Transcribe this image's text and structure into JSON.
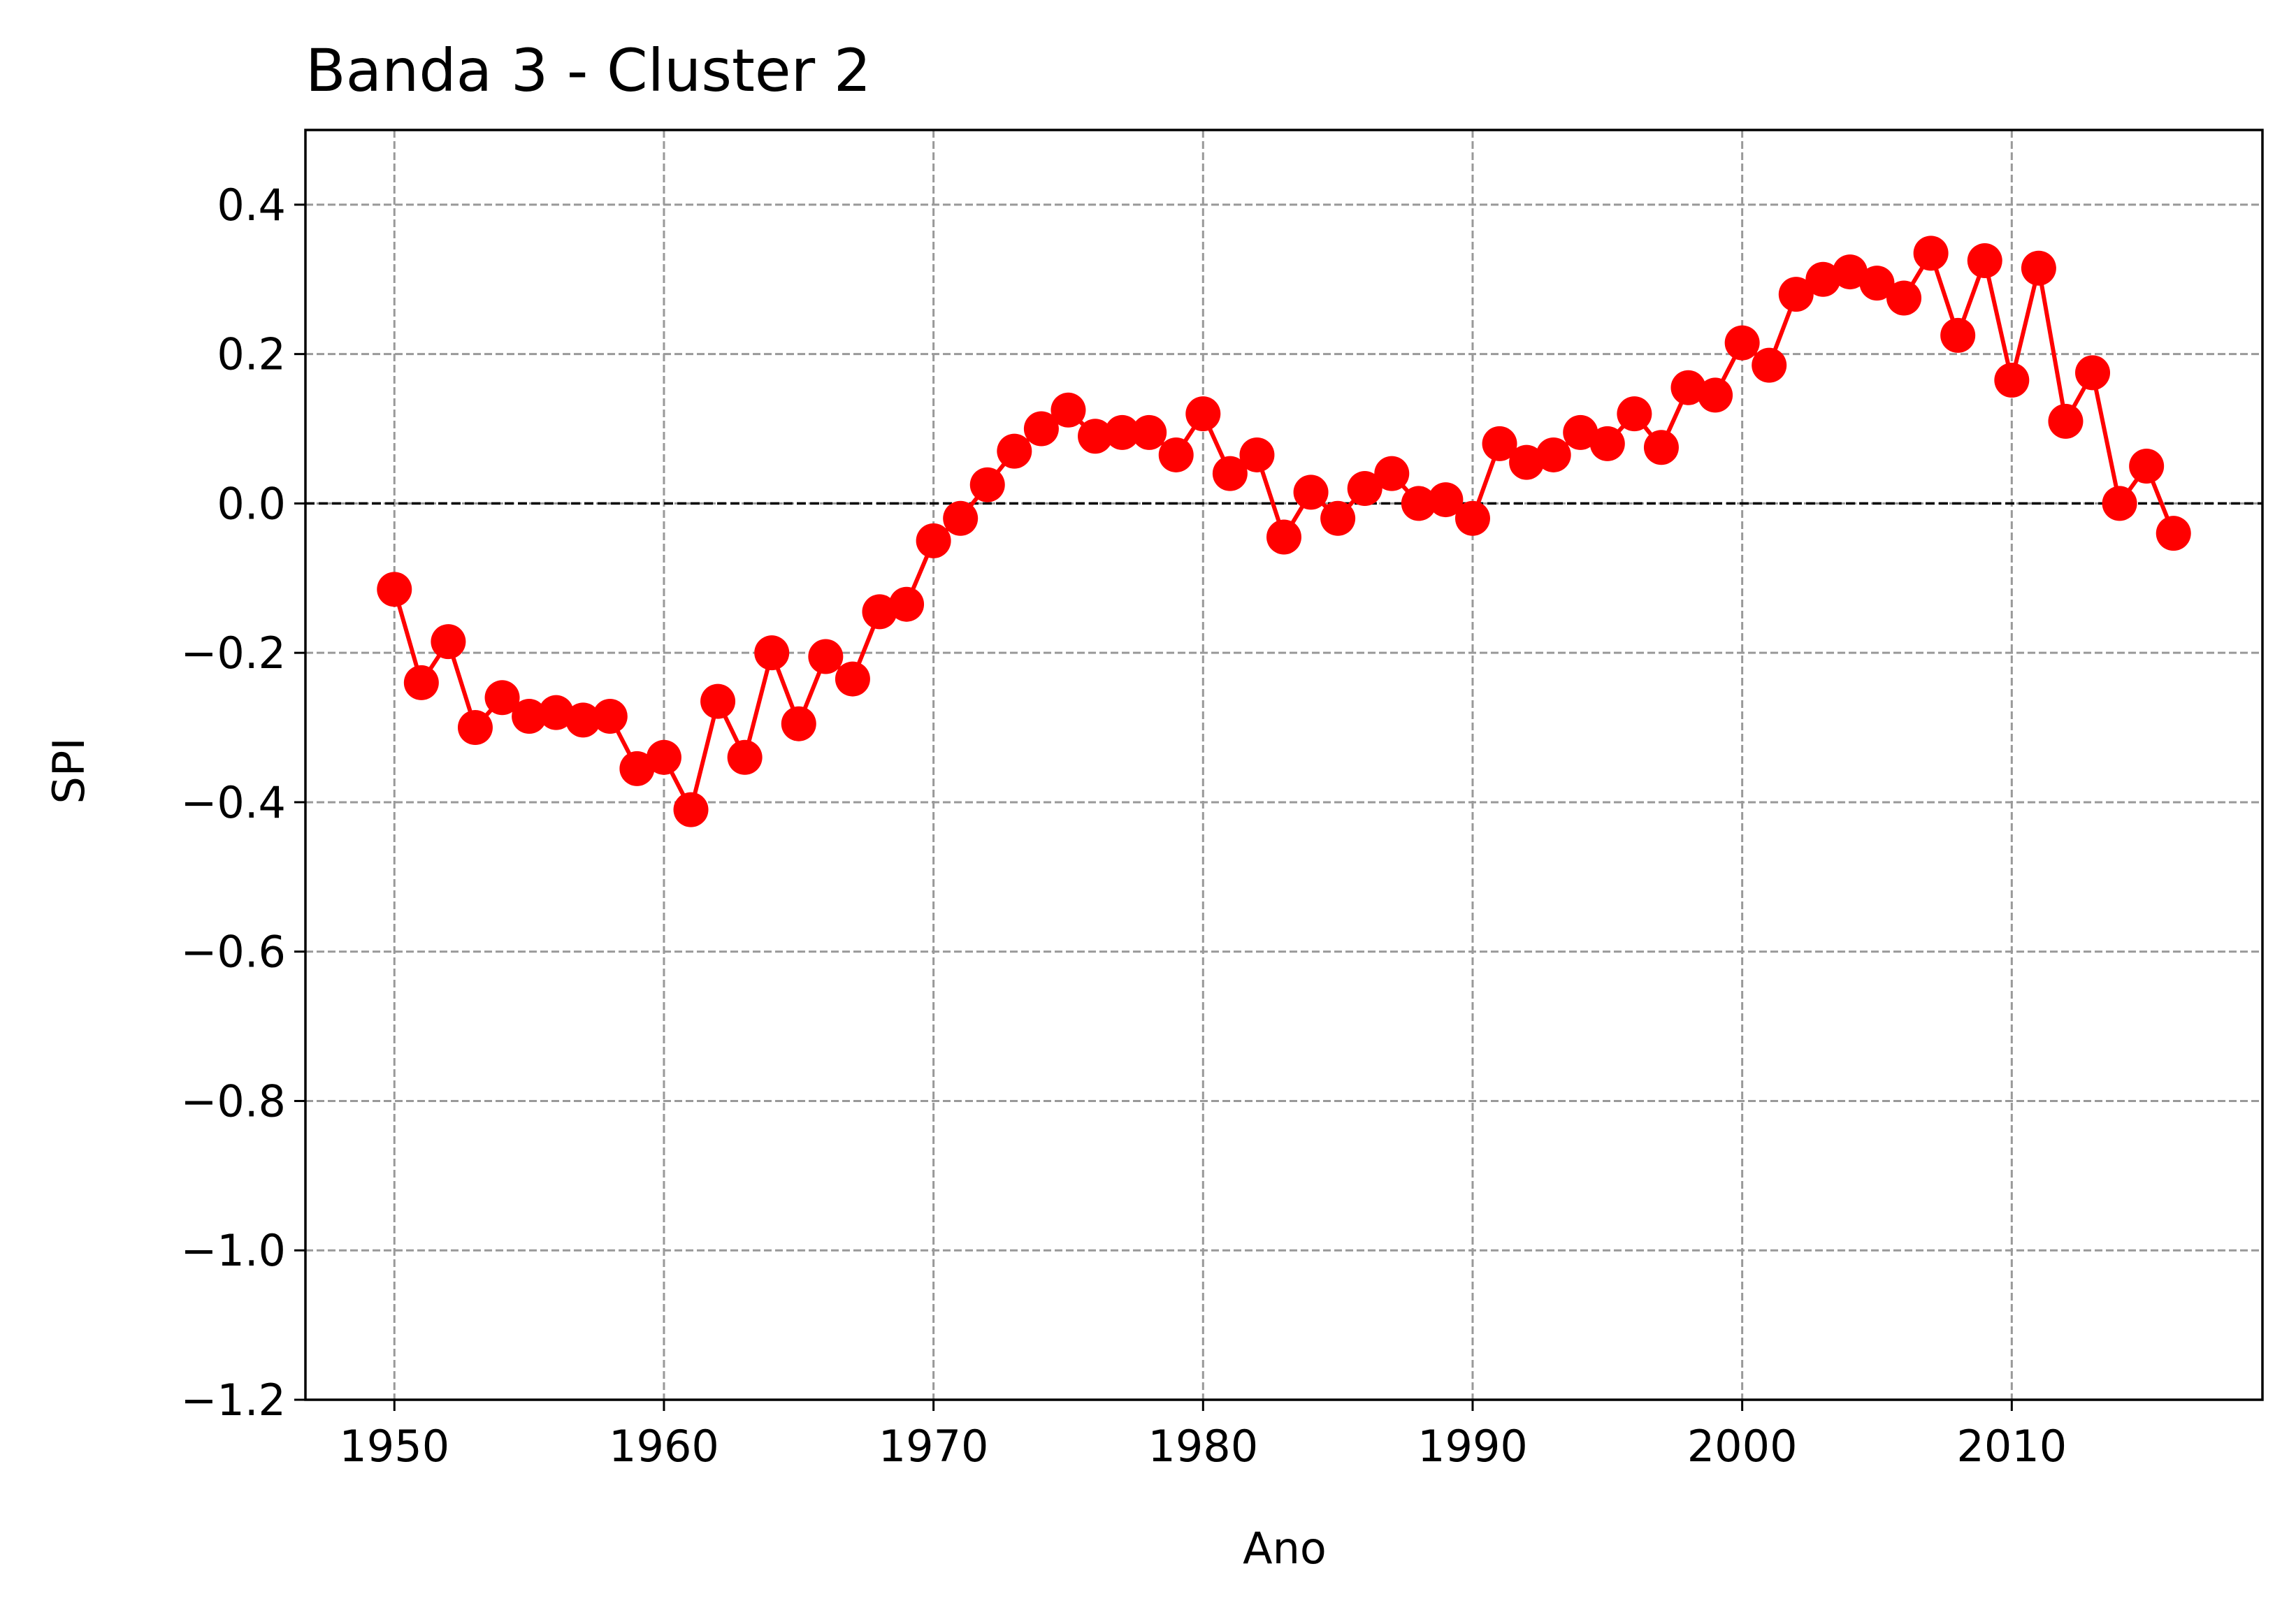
{
  "chart_data": {
    "type": "line",
    "title": "Banda 3 - Cluster 2",
    "xlabel": "Ano",
    "ylabel": "SPI",
    "xlim": [
      1946.7,
      2019.3
    ],
    "ylim": [
      -1.2,
      0.5
    ],
    "xticks": [
      1950,
      1960,
      1970,
      1980,
      1990,
      2000,
      2010
    ],
    "xtick_labels": [
      "1950",
      "1960",
      "1970",
      "1980",
      "1990",
      "2000",
      "2010"
    ],
    "yticks": [
      -1.2,
      -1.0,
      -0.8,
      -0.6,
      -0.4,
      -0.2,
      0.0,
      0.2,
      0.4
    ],
    "ytick_labels": [
      "−1.2",
      "−1.0",
      "−0.8",
      "−0.6",
      "−0.4",
      "−0.2",
      "0.0",
      "0.2",
      "0.4"
    ],
    "grid": true,
    "reference_line": 0.0,
    "colors": {
      "series": "#ff0000",
      "grid": "#999999",
      "reference": "#000000"
    },
    "x": [
      1950,
      1951,
      1952,
      1953,
      1954,
      1955,
      1956,
      1957,
      1958,
      1959,
      1960,
      1961,
      1962,
      1963,
      1964,
      1965,
      1966,
      1967,
      1968,
      1969,
      1970,
      1971,
      1972,
      1973,
      1974,
      1975,
      1976,
      1977,
      1978,
      1979,
      1980,
      1981,
      1982,
      1983,
      1984,
      1985,
      1986,
      1987,
      1988,
      1989,
      1990,
      1991,
      1992,
      1993,
      1994,
      1995,
      1996,
      1997,
      1998,
      1999,
      2000,
      2001,
      2002,
      2003,
      2004,
      2005,
      2006,
      2007,
      2008,
      2009,
      2010,
      2011,
      2012,
      2013,
      2014,
      2015,
      2016
    ],
    "series": [
      {
        "values": [
          -0.115,
          -0.24,
          -0.185,
          -0.3,
          -0.26,
          -0.285,
          -0.28,
          -0.29,
          -0.285,
          -0.355,
          -0.34,
          -0.41,
          -0.265,
          -0.34,
          -0.2,
          -0.295,
          -0.205,
          -0.235,
          -0.145,
          -0.135,
          -0.05,
          -0.02,
          0.025,
          0.07,
          0.1,
          0.125,
          0.09,
          0.095,
          0.095,
          0.065,
          0.12,
          0.04,
          0.065,
          -0.045,
          0.015,
          -0.02,
          0.02,
          0.04,
          0.0,
          0.005,
          -0.02,
          0.08,
          0.055,
          0.065,
          0.095,
          0.08,
          0.12,
          0.075,
          0.155,
          0.145,
          0.215,
          0.185,
          0.28,
          0.3,
          0.31,
          0.295,
          0.275,
          0.335,
          0.225,
          0.325,
          0.165,
          0.315,
          0.11,
          0.175,
          0.0,
          0.05,
          -0.04
        ]
      }
    ]
  }
}
